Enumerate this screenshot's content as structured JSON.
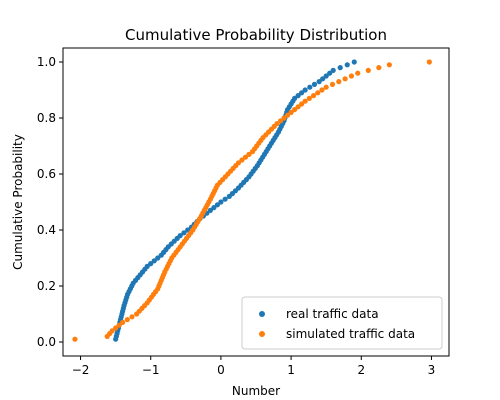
{
  "chart_data": {
    "type": "scatter",
    "title": "Cumulative Probability Distribution",
    "xlabel": "Number",
    "ylabel": "Cumulative Probability",
    "xlim": [
      -2.25,
      3.25
    ],
    "ylim": [
      -0.05,
      1.05
    ],
    "xticks": [
      -2,
      -1,
      0,
      1,
      2,
      3
    ],
    "yticks": [
      0.0,
      0.2,
      0.4,
      0.6,
      0.8,
      1.0
    ],
    "xtick_labels": [
      "−2",
      "−1",
      "0",
      "1",
      "2",
      "3"
    ],
    "ytick_labels": [
      "0.0",
      "0.2",
      "0.4",
      "0.6",
      "0.8",
      "1.0"
    ],
    "grid": false,
    "legend": "lower-right",
    "series": [
      {
        "name": "real traffic data",
        "color": "#1f77b4",
        "knots": [
          [
            -1.5,
            0.01
          ],
          [
            -1.46,
            0.05
          ],
          [
            -1.42,
            0.09
          ],
          [
            -1.38,
            0.13
          ],
          [
            -1.33,
            0.17
          ],
          [
            -1.25,
            0.21
          ],
          [
            -1.15,
            0.24
          ],
          [
            -1.05,
            0.27
          ],
          [
            -0.95,
            0.29
          ],
          [
            -0.85,
            0.31
          ],
          [
            -0.75,
            0.34
          ],
          [
            -0.58,
            0.38
          ],
          [
            -0.42,
            0.41
          ],
          [
            -0.3,
            0.44
          ],
          [
            -0.15,
            0.47
          ],
          [
            0.0,
            0.5
          ],
          [
            0.12,
            0.52
          ],
          [
            0.25,
            0.55
          ],
          [
            0.4,
            0.59
          ],
          [
            0.52,
            0.63
          ],
          [
            0.62,
            0.67
          ],
          [
            0.72,
            0.71
          ],
          [
            0.82,
            0.75
          ],
          [
            0.9,
            0.79
          ],
          [
            0.95,
            0.83
          ],
          [
            1.05,
            0.87
          ],
          [
            1.2,
            0.9
          ],
          [
            1.4,
            0.93
          ],
          [
            1.6,
            0.97
          ],
          [
            1.9,
            1.0
          ]
        ],
        "n": 100
      },
      {
        "name": "simulated traffic data",
        "color": "#ff7f0e",
        "knots": [
          [
            -2.08,
            0.01
          ],
          [
            -1.62,
            0.02
          ],
          [
            -1.55,
            0.04
          ],
          [
            -1.4,
            0.07
          ],
          [
            -1.2,
            0.1
          ],
          [
            -1.05,
            0.14
          ],
          [
            -0.9,
            0.19
          ],
          [
            -0.8,
            0.25
          ],
          [
            -0.7,
            0.3
          ],
          [
            -0.55,
            0.35
          ],
          [
            -0.4,
            0.4
          ],
          [
            -0.28,
            0.45
          ],
          [
            -0.15,
            0.51
          ],
          [
            -0.05,
            0.56
          ],
          [
            0.1,
            0.6
          ],
          [
            0.25,
            0.64
          ],
          [
            0.45,
            0.68
          ],
          [
            0.6,
            0.73
          ],
          [
            0.8,
            0.78
          ],
          [
            1.0,
            0.82
          ],
          [
            1.2,
            0.86
          ],
          [
            1.5,
            0.91
          ],
          [
            1.95,
            0.96
          ],
          [
            2.4,
            0.99
          ],
          [
            2.97,
            1.0
          ]
        ],
        "n": 100
      }
    ]
  }
}
